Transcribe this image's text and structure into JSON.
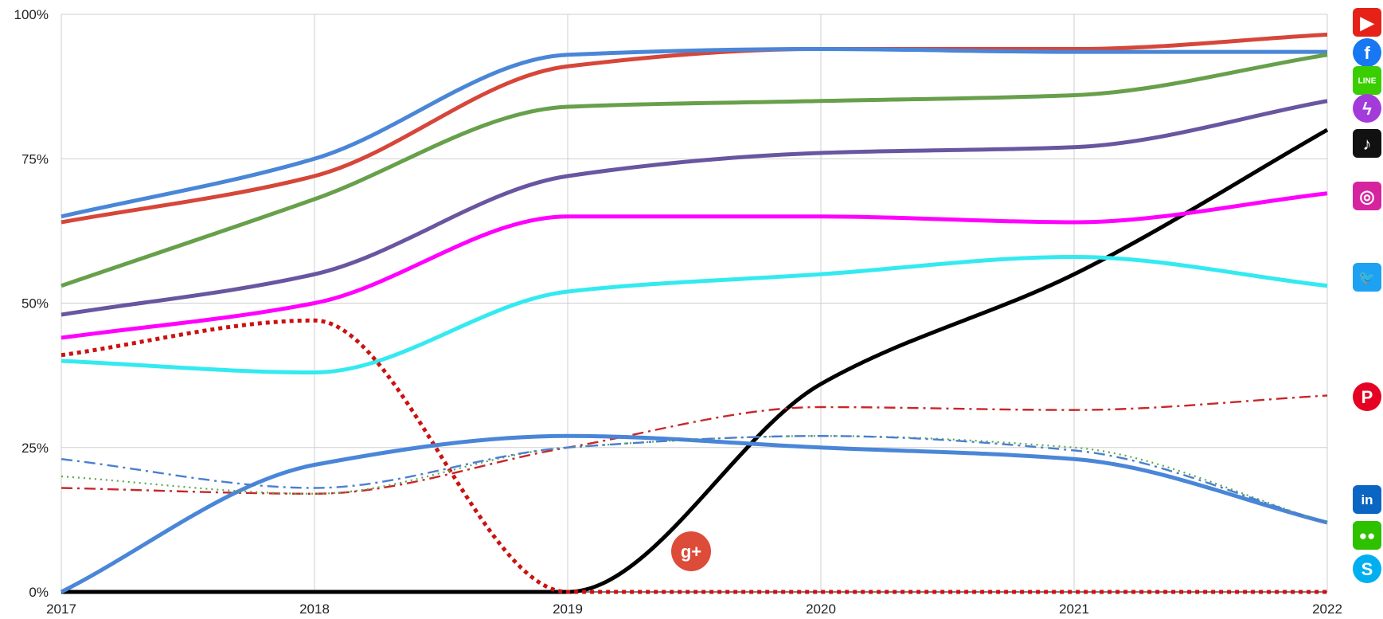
{
  "chart_data": {
    "type": "line",
    "title": "",
    "xlabel": "",
    "ylabel": "",
    "x": [
      2017,
      2018,
      2019,
      2020,
      2021,
      2022
    ],
    "x_tick_labels": [
      "2017",
      "2018",
      "2019",
      "2020",
      "2021",
      "2022"
    ],
    "ylim": [
      0,
      100
    ],
    "y_ticks": [
      0,
      25,
      50,
      75,
      100
    ],
    "y_tick_labels": [
      "0%",
      "25%",
      "50%",
      "75%",
      "100%"
    ],
    "grid": true,
    "legend_placement": "right (brand icons)",
    "series": [
      {
        "icon": "youtube-icon",
        "color": "#d6463a",
        "style": "solid",
        "values": [
          64,
          72,
          91,
          94,
          94,
          96.5
        ]
      },
      {
        "icon": "facebook-icon",
        "color": "#4a86d8",
        "style": "solid",
        "values": [
          65,
          75,
          93,
          94,
          93.5,
          93.5
        ]
      },
      {
        "icon": "line-icon",
        "color": "#67a04b",
        "style": "solid",
        "values": [
          53,
          68,
          84,
          85,
          86,
          93
        ]
      },
      {
        "icon": "messenger-icon",
        "color": "#6a55a0",
        "style": "solid",
        "values": [
          48,
          55,
          72,
          76,
          77,
          85
        ]
      },
      {
        "icon": "tiktok-icon",
        "color": "#000000",
        "style": "solid",
        "values": [
          0,
          0,
          0,
          36,
          55,
          80
        ]
      },
      {
        "icon": "instagram-icon",
        "color": "#ff00ff",
        "style": "solid",
        "values": [
          44,
          50,
          65,
          65,
          64,
          69
        ]
      },
      {
        "icon": "twitter-icon",
        "color": "#33eaf0",
        "style": "solid",
        "values": [
          40,
          38,
          52,
          55,
          58,
          53
        ]
      },
      {
        "icon": "pinterest-icon",
        "color": "#c8262b",
        "style": "dashdot",
        "values": [
          18,
          17,
          25,
          32,
          31.5,
          34
        ]
      },
      {
        "icon": "google-plus-icon",
        "color": "#cc1111",
        "style": "dotted",
        "values": [
          41,
          47,
          0,
          0,
          0,
          0
        ]
      },
      {
        "icon": "linkedin-icon",
        "color": "#4a86d8",
        "style": "solid",
        "values": [
          0,
          22,
          27,
          25,
          23,
          12
        ]
      },
      {
        "icon": "wechat-icon",
        "color": "#5aa84a",
        "style": "dotted",
        "values": [
          20,
          17,
          25,
          27,
          25,
          12
        ]
      },
      {
        "icon": "skype-icon",
        "color": "#4a7fd0",
        "style": "dashdot",
        "values": [
          23,
          18,
          25,
          27,
          24.5,
          12
        ]
      }
    ]
  },
  "legend_icons": [
    {
      "name": "youtube-icon",
      "color": "#e62117",
      "glyph": "▶"
    },
    {
      "name": "facebook-icon",
      "color": "#1877f2",
      "glyph": "f"
    },
    {
      "name": "line-icon",
      "color": "#3ace01",
      "glyph": "LINE"
    },
    {
      "name": "messenger-icon",
      "color": "#a33bdb",
      "glyph": "ϟ"
    },
    {
      "name": "tiktok-icon",
      "color": "#111111",
      "glyph": "♪"
    },
    {
      "name": "instagram-icon",
      "color": "#d6249f",
      "glyph": "◎"
    },
    {
      "name": "twitter-icon",
      "color": "#1da1f2",
      "glyph": "🐦"
    },
    {
      "name": "pinterest-icon",
      "color": "#e60023",
      "glyph": "P"
    },
    {
      "name": "linkedin-icon",
      "color": "#0a66c2",
      "glyph": "in"
    },
    {
      "name": "wechat-icon",
      "color": "#2dc100",
      "glyph": "●●"
    },
    {
      "name": "skype-icon",
      "color": "#00aff0",
      "glyph": "S"
    }
  ],
  "annotation_icon": {
    "name": "google-plus-icon",
    "color": "#dd4b39",
    "glyph": "g+"
  }
}
